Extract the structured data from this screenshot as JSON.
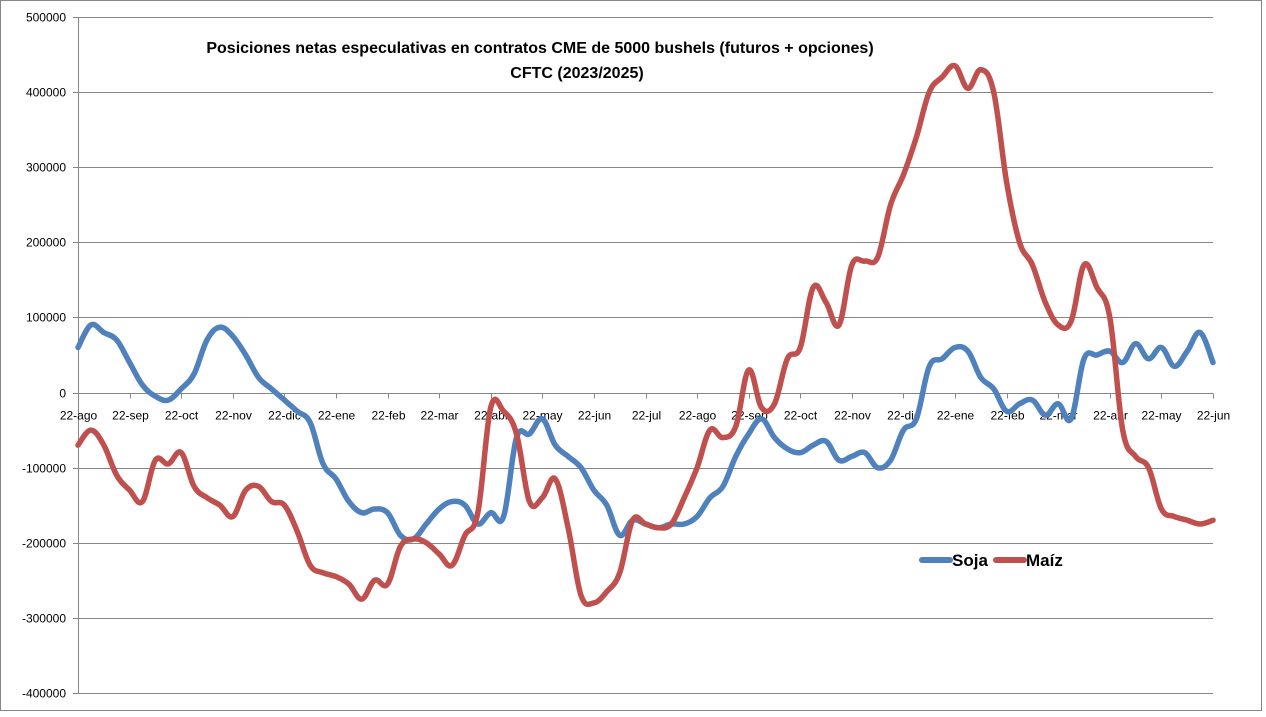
{
  "chart_data": {
    "type": "line",
    "title": "Posiciones netas especulativas en contratos CME de 5000 bushels (futuros + opciones)",
    "subtitle": "CFTC (2023/2025)",
    "xlabel": "",
    "ylabel": "",
    "ylim": [
      -400000,
      500000
    ],
    "yticks": [
      -400000,
      -300000,
      -200000,
      -100000,
      0,
      100000,
      200000,
      300000,
      400000,
      500000
    ],
    "ytick_labels": [
      "-400000",
      "-300000",
      "-200000",
      "-100000",
      "0",
      "100000",
      "200000",
      "300000",
      "400000",
      "500000"
    ],
    "xlim": [
      0,
      22
    ],
    "categories": [
      "22-ago",
      "22-sep",
      "22-oct",
      "22-nov",
      "22-dic",
      "22-ene",
      "22-feb",
      "22-mar",
      "22-abr",
      "22-may",
      "22-jun",
      "22-jul",
      "22-ago",
      "22-sep",
      "22-oct",
      "22-nov",
      "22-dic",
      "22-ene",
      "22-feb",
      "22-mar",
      "22-abr",
      "22-may",
      "22-jun"
    ],
    "grid": true,
    "legend_position": "bottom-right",
    "series": [
      {
        "name": "Soja",
        "color": "#4f81bd",
        "x": [
          0,
          0.25,
          0.5,
          0.75,
          1,
          1.25,
          1.5,
          1.75,
          2,
          2.25,
          2.5,
          2.75,
          3,
          3.25,
          3.5,
          3.75,
          4,
          4.25,
          4.5,
          4.75,
          5,
          5.25,
          5.5,
          5.75,
          6,
          6.25,
          6.5,
          6.75,
          7,
          7.25,
          7.5,
          7.75,
          8,
          8.25,
          8.5,
          8.75,
          9,
          9.25,
          9.5,
          9.75,
          10,
          10.25,
          10.5,
          10.75,
          11,
          11.25,
          11.5,
          11.75,
          12,
          12.25,
          12.5,
          12.75,
          13,
          13.25,
          13.5,
          13.75,
          14,
          14.25,
          14.5,
          14.75,
          15,
          15.25,
          15.5,
          15.75,
          16,
          16.25,
          16.5,
          16.75,
          17,
          17.25,
          17.5,
          17.75,
          18,
          18.25,
          18.5,
          18.75,
          19,
          19.25,
          19.5,
          19.75,
          20,
          20.25,
          20.5,
          20.75,
          21,
          21.25,
          21.5,
          21.75,
          22
        ],
        "values": [
          60000,
          90000,
          80000,
          70000,
          40000,
          10000,
          -5000,
          -10000,
          5000,
          25000,
          70000,
          87000,
          75000,
          50000,
          20000,
          5000,
          -10000,
          -25000,
          -40000,
          -95000,
          -115000,
          -145000,
          -160000,
          -155000,
          -160000,
          -190000,
          -195000,
          -175000,
          -155000,
          -145000,
          -150000,
          -175000,
          -160000,
          -165000,
          -60000,
          -55000,
          -35000,
          -70000,
          -85000,
          -100000,
          -130000,
          -150000,
          -190000,
          -170000,
          -175000,
          -180000,
          -175000,
          -175000,
          -165000,
          -140000,
          -125000,
          -85000,
          -55000,
          -35000,
          -60000,
          -75000,
          -80000,
          -70000,
          -65000,
          -90000,
          -85000,
          -80000,
          -100000,
          -90000,
          -50000,
          -35000,
          35000,
          45000,
          60000,
          55000,
          20000,
          5000,
          -25000,
          -15000,
          -10000,
          -30000,
          -15000,
          -35000,
          45000,
          50000,
          55000,
          40000,
          65000,
          45000,
          60000,
          35000,
          55000,
          80000,
          40000
        ]
      },
      {
        "name": "Maíz",
        "color": "#c0504d",
        "x": [
          0,
          0.25,
          0.5,
          0.75,
          1,
          1.25,
          1.5,
          1.75,
          2,
          2.25,
          2.5,
          2.75,
          3,
          3.25,
          3.5,
          3.75,
          4,
          4.25,
          4.5,
          4.75,
          5,
          5.25,
          5.5,
          5.75,
          6,
          6.25,
          6.5,
          6.75,
          7,
          7.25,
          7.5,
          7.75,
          8,
          8.25,
          8.5,
          8.75,
          9,
          9.25,
          9.5,
          9.75,
          10,
          10.25,
          10.5,
          10.75,
          11,
          11.25,
          11.5,
          11.75,
          12,
          12.25,
          12.5,
          12.75,
          13,
          13.25,
          13.5,
          13.75,
          14,
          14.25,
          14.5,
          14.75,
          15,
          15.25,
          15.5,
          15.75,
          16,
          16.25,
          16.5,
          16.75,
          17,
          17.25,
          17.5,
          17.75,
          18,
          18.25,
          18.5,
          18.75,
          19,
          19.25,
          19.5,
          19.75,
          20,
          20.25,
          20.5,
          20.75,
          21,
          21.25,
          21.5,
          21.75,
          22
        ],
        "values": [
          -70000,
          -50000,
          -70000,
          -110000,
          -130000,
          -145000,
          -90000,
          -95000,
          -80000,
          -125000,
          -140000,
          -150000,
          -165000,
          -130000,
          -125000,
          -145000,
          -150000,
          -185000,
          -230000,
          -240000,
          -245000,
          -255000,
          -275000,
          -250000,
          -255000,
          -205000,
          -195000,
          -200000,
          -215000,
          -230000,
          -190000,
          -160000,
          -20000,
          -25000,
          -55000,
          -145000,
          -140000,
          -115000,
          -180000,
          -270000,
          -280000,
          -265000,
          -240000,
          -170000,
          -175000,
          -180000,
          -175000,
          -140000,
          -100000,
          -50000,
          -60000,
          -45000,
          30000,
          -20000,
          -15000,
          45000,
          60000,
          140000,
          120000,
          90000,
          170000,
          175000,
          180000,
          250000,
          290000,
          340000,
          400000,
          420000,
          435000,
          405000,
          430000,
          400000,
          280000,
          200000,
          170000,
          120000,
          90000,
          95000,
          170000,
          140000,
          100000,
          -50000,
          -85000,
          -100000,
          -155000,
          -165000,
          -170000,
          -175000,
          -170000
        ]
      }
    ]
  }
}
